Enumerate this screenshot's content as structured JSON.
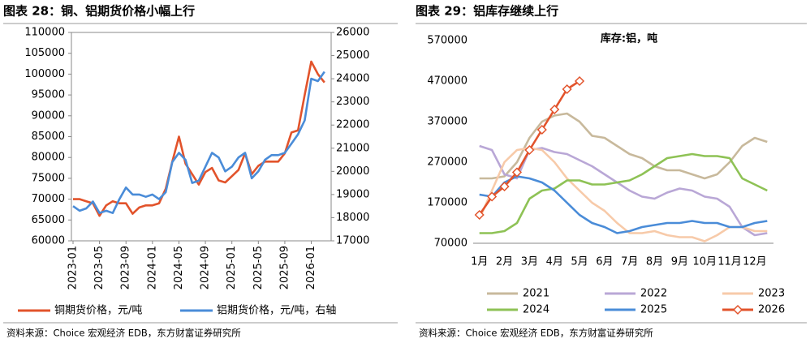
{
  "chart_data": [
    {
      "type": "line",
      "title": "图表 28：铜、铝期货价格小幅上行",
      "source": "资料来源：Choice 宏观经济 EDB，东方财富证券研究所",
      "x": [
        "2023-01",
        "2023-02",
        "2023-03",
        "2023-04",
        "2023-05",
        "2023-06",
        "2023-07",
        "2023-08",
        "2023-09",
        "2023-10",
        "2023-11",
        "2023-12",
        "2024-01",
        "2024-02",
        "2024-03",
        "2024-04",
        "2024-05",
        "2024-06",
        "2024-07",
        "2024-08",
        "2024-09",
        "2024-10",
        "2024-11",
        "2024-12",
        "2025-01",
        "2025-02",
        "2025-03",
        "2025-04",
        "2025-05",
        "2025-06",
        "2025-07",
        "2025-08",
        "2025-09",
        "2025-10",
        "2025-11",
        "2025-12",
        "2026-01",
        "2026-02",
        "2026-03"
      ],
      "xlim": [
        "2023-01",
        "2026-04"
      ],
      "xticks": [
        "2023-01",
        "2023-05",
        "2023-09",
        "2024-01",
        "2024-05",
        "2024-09",
        "2025-01",
        "2025-05",
        "2025-09",
        "2026-01"
      ],
      "ylim": [
        60000,
        110000
      ],
      "yticks": [
        60000,
        65000,
        70000,
        75000,
        80000,
        85000,
        90000,
        95000,
        100000,
        105000,
        110000
      ],
      "y2lim": [
        17000,
        26000
      ],
      "y2ticks": [
        17000,
        18000,
        19000,
        20000,
        21000,
        22000,
        23000,
        24000,
        25000,
        26000
      ],
      "legend": "bottom",
      "series": [
        {
          "name": "铜期货价格，元/吨",
          "color": "#e2532b",
          "values": [
            70000,
            70000,
            69500,
            69000,
            66000,
            68500,
            69500,
            69000,
            69000,
            66500,
            68000,
            68500,
            68500,
            69000,
            72500,
            79000,
            85000,
            78500,
            76000,
            73500,
            76500,
            77500,
            74500,
            74000,
            75500,
            77000,
            81000,
            76000,
            78000,
            79000,
            79000,
            79000,
            81000,
            86000,
            86500,
            95000,
            103000,
            100000,
            98000
          ]
        },
        {
          "name": "铝期货价格，元/吨，右轴",
          "color": "#4a8cd8",
          "axis": "y2",
          "values": [
            18500,
            18300,
            18400,
            18700,
            18200,
            18300,
            18200,
            18800,
            19300,
            19000,
            19000,
            18900,
            19000,
            18800,
            19100,
            20400,
            20800,
            20500,
            19500,
            19600,
            20200,
            20800,
            20600,
            20000,
            20200,
            20600,
            20800,
            19700,
            20000,
            20500,
            20700,
            20700,
            20800,
            21200,
            21600,
            22200,
            24000,
            23900,
            24300
          ]
        }
      ]
    },
    {
      "type": "line",
      "title": "图表 29：铝库存继续上行",
      "subtitle": "库存:铝，吨",
      "source": "资料来源：Choice 宏观经济 EDB，东方财富证券研究所",
      "categories": [
        "1月",
        null,
        "2月",
        null,
        "3月",
        null,
        "4月",
        null,
        "5月",
        null,
        "6月",
        null,
        "7月",
        null,
        "8月",
        null,
        "9月",
        null,
        "10月",
        null,
        "11月",
        null,
        "12月",
        null
      ],
      "ylim": [
        70000,
        570000
      ],
      "yticks": [
        70000,
        170000,
        270000,
        370000,
        470000,
        570000
      ],
      "legend": "bottom",
      "series": [
        {
          "name": "2021",
          "color": "#c8b99c",
          "values": [
            230000,
            230000,
            235000,
            270000,
            330000,
            370000,
            385000,
            390000,
            370000,
            335000,
            330000,
            310000,
            290000,
            280000,
            260000,
            250000,
            250000,
            240000,
            230000,
            240000,
            270000,
            310000,
            330000,
            320000
          ]
        },
        {
          "name": "2022",
          "color": "#b9a7d6",
          "values": [
            310000,
            300000,
            240000,
            230000,
            300000,
            305000,
            295000,
            290000,
            275000,
            260000,
            240000,
            220000,
            200000,
            185000,
            180000,
            195000,
            205000,
            200000,
            185000,
            180000,
            160000,
            110000,
            90000,
            95000
          ]
        },
        {
          "name": "2023",
          "color": "#f7caa9",
          "values": [
            130000,
            200000,
            270000,
            300000,
            305000,
            300000,
            270000,
            230000,
            200000,
            170000,
            150000,
            120000,
            95000,
            95000,
            100000,
            90000,
            85000,
            85000,
            75000,
            90000,
            110000,
            110000,
            100000,
            100000
          ]
        },
        {
          "name": "2024",
          "color": "#8ec255",
          "values": [
            95000,
            95000,
            100000,
            120000,
            180000,
            200000,
            205000,
            225000,
            225000,
            215000,
            215000,
            220000,
            225000,
            240000,
            260000,
            280000,
            285000,
            290000,
            285000,
            285000,
            280000,
            230000,
            215000,
            200000
          ]
        },
        {
          "name": "2025",
          "color": "#4a8cd8",
          "values": [
            190000,
            185000,
            220000,
            235000,
            230000,
            220000,
            200000,
            170000,
            140000,
            120000,
            110000,
            95000,
            100000,
            110000,
            115000,
            120000,
            120000,
            125000,
            120000,
            120000,
            110000,
            110000,
            120000,
            125000
          ]
        },
        {
          "name": "2026",
          "color": "#e2532b",
          "marker": "diamond",
          "values": [
            140000,
            185000,
            210000,
            245000,
            300000,
            350000,
            400000,
            450000,
            470000,
            null,
            null,
            null,
            null,
            null,
            null,
            null,
            null,
            null,
            null,
            null,
            null,
            null,
            null,
            null
          ]
        }
      ]
    }
  ]
}
